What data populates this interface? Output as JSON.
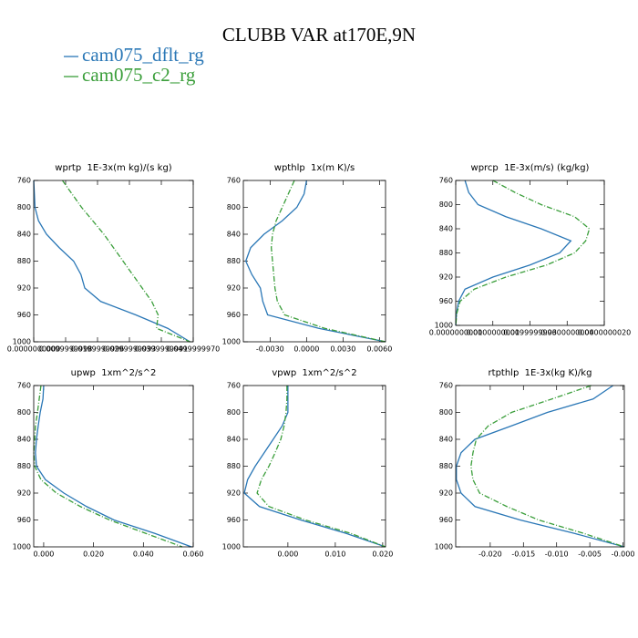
{
  "title": "CLUBB VAR at170E,9N",
  "chart_data": [
    {
      "type": "line",
      "title": "wprtp  1E-3x(m kg)/(s kg)",
      "yreverse": true,
      "y": [
        760,
        780,
        800,
        820,
        840,
        860,
        880,
        900,
        920,
        940,
        960,
        980,
        1000
      ],
      "series": [
        {
          "name": "cam075_dflt_rg",
          "color": "#2a77b6",
          "dash": "none",
          "values": [
            0,
            0.0002,
            0.0004,
            0.0015,
            0.004,
            0.008,
            0.0125,
            0.0148,
            0.016,
            0.021,
            0.032,
            0.042,
            0.049
          ]
        },
        {
          "name": "cam075_c2_rg",
          "color": "#3a9e3a",
          "dash": "6 2 1 2",
          "values": [
            0.009,
            0.012,
            0.015,
            0.0185,
            0.022,
            0.025,
            0.028,
            0.031,
            0.034,
            0.037,
            0.039,
            0.0385,
            0.049
          ]
        }
      ],
      "xlim": [
        0,
        0.05
      ],
      "xticks": [
        {
          "value": 0,
          "label": "0.0000000000"
        },
        {
          "value": 0.01,
          "label": "0.0099999998"
        },
        {
          "value": 0.02,
          "label": "0.0199999996"
        },
        {
          "value": 0.03,
          "label": "0.0299999993"
        },
        {
          "value": 0.04,
          "label": "0.0399999991"
        },
        {
          "value": 0.05,
          "label": "0.0499999970"
        }
      ],
      "ylim": [
        760,
        1000
      ],
      "yticks": [
        760,
        800,
        840,
        880,
        920,
        960,
        1000
      ]
    },
    {
      "type": "line",
      "title": "wpthlp  1x(m K)/s",
      "yreverse": true,
      "y": [
        760,
        780,
        800,
        820,
        840,
        860,
        880,
        900,
        920,
        940,
        960,
        980,
        1000
      ],
      "series": [
        {
          "color": "#2a77b6",
          "dash": "none",
          "values": [
            0,
            -0.0002,
            -0.0008,
            -0.002,
            -0.0035,
            -0.0046,
            -0.005,
            -0.0045,
            -0.0038,
            -0.0036,
            -0.0032,
            0.001,
            0.0065
          ]
        },
        {
          "color": "#3a9e3a",
          "dash": "6 2 1 2",
          "values": [
            -0.001,
            -0.0015,
            -0.002,
            -0.0025,
            -0.0028,
            -0.0029,
            -0.0028,
            -0.0027,
            -0.0026,
            -0.0024,
            -0.0018,
            0.0015,
            0.0065
          ]
        }
      ],
      "xlim": [
        -0.0052,
        0.0065
      ],
      "xticks": [
        {
          "value": -0.003,
          "label": "-0.0030"
        },
        {
          "value": 0,
          "label": "0.0000"
        },
        {
          "value": 0.003,
          "label": "0.0030"
        },
        {
          "value": 0.006,
          "label": "0.0060"
        }
      ],
      "ylim": [
        760,
        1000
      ],
      "yticks": [
        760,
        800,
        840,
        880,
        920,
        960,
        1000
      ]
    },
    {
      "type": "line",
      "title": "wprcp  1E-3x(m/s) (kg/kg)",
      "yreverse": true,
      "y": [
        760,
        780,
        800,
        820,
        840,
        860,
        880,
        900,
        920,
        940,
        960,
        980,
        1000
      ],
      "series": [
        {
          "color": "#2a77b6",
          "dash": "none",
          "values": [
            0.0025,
            0.0035,
            0.006,
            0.0135,
            0.023,
            0.031,
            0.028,
            0.02,
            0.01,
            0.0025,
            0.0008,
            0.0002,
            0
          ]
        },
        {
          "color": "#3a9e3a",
          "dash": "6 2 1 2",
          "values": [
            0.01,
            0.016,
            0.023,
            0.032,
            0.036,
            0.035,
            0.032,
            0.0245,
            0.0135,
            0.005,
            0.0012,
            0.0003,
            0
          ]
        }
      ],
      "xlim": [
        0,
        0.04
      ],
      "xticks": [
        {
          "value": 0,
          "label": "0.0000000000"
        },
        {
          "value": 0.01,
          "label": "0.0100000000"
        },
        {
          "value": 0.02,
          "label": "0.0199999996"
        },
        {
          "value": 0.03,
          "label": "0.0300000000"
        },
        {
          "value": 0.04,
          "label": "0.0400000020"
        }
      ],
      "ylim": [
        760,
        1000
      ],
      "yticks": [
        760,
        800,
        840,
        880,
        920,
        960,
        1000
      ]
    },
    {
      "type": "line",
      "title": "upwp  1xm^2/s^2",
      "yreverse": true,
      "y": [
        760,
        780,
        800,
        820,
        840,
        860,
        880,
        900,
        920,
        940,
        960,
        980,
        1000
      ],
      "series": [
        {
          "color": "#2a77b6",
          "dash": "none",
          "values": [
            0,
            -0.0003,
            -0.0014,
            -0.0022,
            -0.0029,
            -0.0033,
            -0.0029,
            0.0007,
            0.0081,
            0.0172,
            0.0282,
            0.0446,
            0.0593
          ]
        },
        {
          "color": "#3a9e3a",
          "dash": "6 2 1 2",
          "values": [
            -0.0011,
            -0.0018,
            -0.0025,
            -0.0033,
            -0.0036,
            -0.004,
            -0.0036,
            -0.0011,
            0.0051,
            0.0147,
            0.0264,
            0.041,
            0.0556
          ]
        }
      ],
      "xlim": [
        -0.004,
        0.06
      ],
      "xticks": [
        {
          "value": 0,
          "label": "0.000"
        },
        {
          "value": 0.02,
          "label": "0.020"
        },
        {
          "value": 0.04,
          "label": "0.040"
        },
        {
          "value": 0.06,
          "label": "0.060"
        }
      ],
      "ylim": [
        760,
        1000
      ],
      "yticks": [
        760,
        800,
        840,
        880,
        920,
        960,
        1000
      ]
    },
    {
      "type": "line",
      "title": "vpwp  1xm^2/s^2",
      "yreverse": true,
      "y": [
        760,
        780,
        800,
        820,
        840,
        860,
        880,
        900,
        920,
        940,
        960,
        980,
        1000
      ],
      "series": [
        {
          "color": "#2a77b6",
          "dash": "none",
          "values": [
            0,
            0,
            0,
            -0.0012,
            -0.0031,
            -0.005,
            -0.0069,
            -0.0085,
            -0.0092,
            -0.006,
            0.0027,
            0.0123,
            0.0206
          ]
        },
        {
          "color": "#3a9e3a",
          "dash": "6 2 1 2",
          "values": [
            -0.0002,
            -0.0002,
            -0.0004,
            -0.0008,
            -0.0015,
            -0.0027,
            -0.004,
            -0.0056,
            -0.0065,
            -0.004,
            0.0037,
            0.0133,
            0.0206
          ]
        }
      ],
      "xlim": [
        -0.0094,
        0.0206
      ],
      "xticks": [
        {
          "value": 0,
          "label": "0.000"
        },
        {
          "value": 0.01,
          "label": "0.010"
        },
        {
          "value": 0.02,
          "label": "0.020"
        }
      ],
      "ylim": [
        760,
        1000
      ],
      "yticks": [
        760,
        800,
        840,
        880,
        920,
        960,
        1000
      ]
    },
    {
      "type": "line",
      "title": "rtpthlp  1E-3x(kg K)/kg",
      "yreverse": true,
      "y": [
        760,
        780,
        800,
        820,
        840,
        860,
        880,
        900,
        920,
        940,
        960,
        980,
        1000
      ],
      "series": [
        {
          "color": "#2a77b6",
          "dash": "none",
          "values": [
            -0.0015,
            -0.0045,
            -0.0114,
            -0.0168,
            -0.0223,
            -0.0244,
            -0.0251,
            -0.0251,
            -0.0244,
            -0.0223,
            -0.0155,
            -0.0073,
            0.0002
          ]
        },
        {
          "color": "#3a9e3a",
          "dash": "6 2 1 2",
          "values": [
            -0.0048,
            -0.0107,
            -0.0168,
            -0.0203,
            -0.0221,
            -0.0226,
            -0.0229,
            -0.0226,
            -0.0216,
            -0.0175,
            -0.0127,
            -0.0059,
            0.0002
          ]
        }
      ],
      "xlim": [
        -0.0252,
        0.0002
      ],
      "xticks": [
        {
          "value": -0.02,
          "label": "-0.020"
        },
        {
          "value": -0.015,
          "label": "-0.015"
        },
        {
          "value": -0.01,
          "label": "-0.010"
        },
        {
          "value": -0.005,
          "label": "-0.005"
        },
        {
          "value": 0,
          "label": "-0.000"
        }
      ],
      "ylim": [
        760,
        1000
      ],
      "yticks": [
        760,
        800,
        840,
        880,
        920,
        960,
        1000
      ]
    }
  ]
}
